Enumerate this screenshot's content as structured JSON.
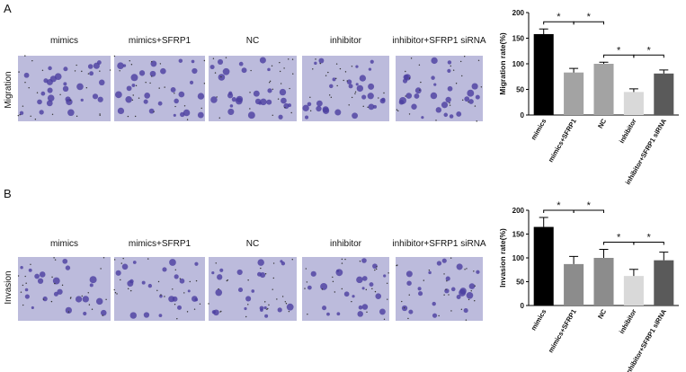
{
  "panels": [
    {
      "label": "A",
      "row_label": "Migration",
      "image_labels": [
        "mimics",
        "mimics+SFRP1",
        "NC",
        "inhibitor",
        "inhibitor+SFRP1 siRNA"
      ]
    },
    {
      "label": "B",
      "row_label": "Invasion",
      "image_labels": [
        "mimics",
        "mimics+SFRP1",
        "NC",
        "inhibitor",
        "inhibitor+SFRP1 siRNA"
      ]
    }
  ],
  "chart_data": [
    {
      "type": "bar",
      "y_label": "Migration rate(%)",
      "categories": [
        "mimics",
        "mimics+SFRP1",
        "NC",
        "inhibitor",
        "inhibitor+SFRP1 siRNA"
      ],
      "values": [
        158,
        83,
        100,
        45,
        81
      ],
      "errors": [
        10,
        8,
        3,
        6,
        7
      ],
      "colors": [
        "#000000",
        "#a3a3a3",
        "#a3a3a3",
        "#d9d9d9",
        "#5a5a5a"
      ],
      "significance": [
        "*",
        "*",
        "*",
        "*"
      ],
      "ylim": [
        0,
        200
      ],
      "yticks": [
        0,
        50,
        100,
        150,
        200
      ]
    },
    {
      "type": "bar",
      "y_label": "Invasion rate(%)",
      "categories": [
        "mimics",
        "mimics+SFRP1",
        "NC",
        "inhibitor",
        "inhibitor+SFRP1 siRNA"
      ],
      "values": [
        165,
        87,
        100,
        62,
        95
      ],
      "errors": [
        20,
        16,
        18,
        14,
        17
      ],
      "colors": [
        "#000000",
        "#8c8c8c",
        "#8c8c8c",
        "#d9d9d9",
        "#5a5a5a"
      ],
      "significance": [
        "*",
        "*",
        "*",
        "*"
      ],
      "ylim": [
        0,
        200
      ],
      "yticks": [
        0,
        50,
        100,
        150,
        200
      ]
    }
  ]
}
